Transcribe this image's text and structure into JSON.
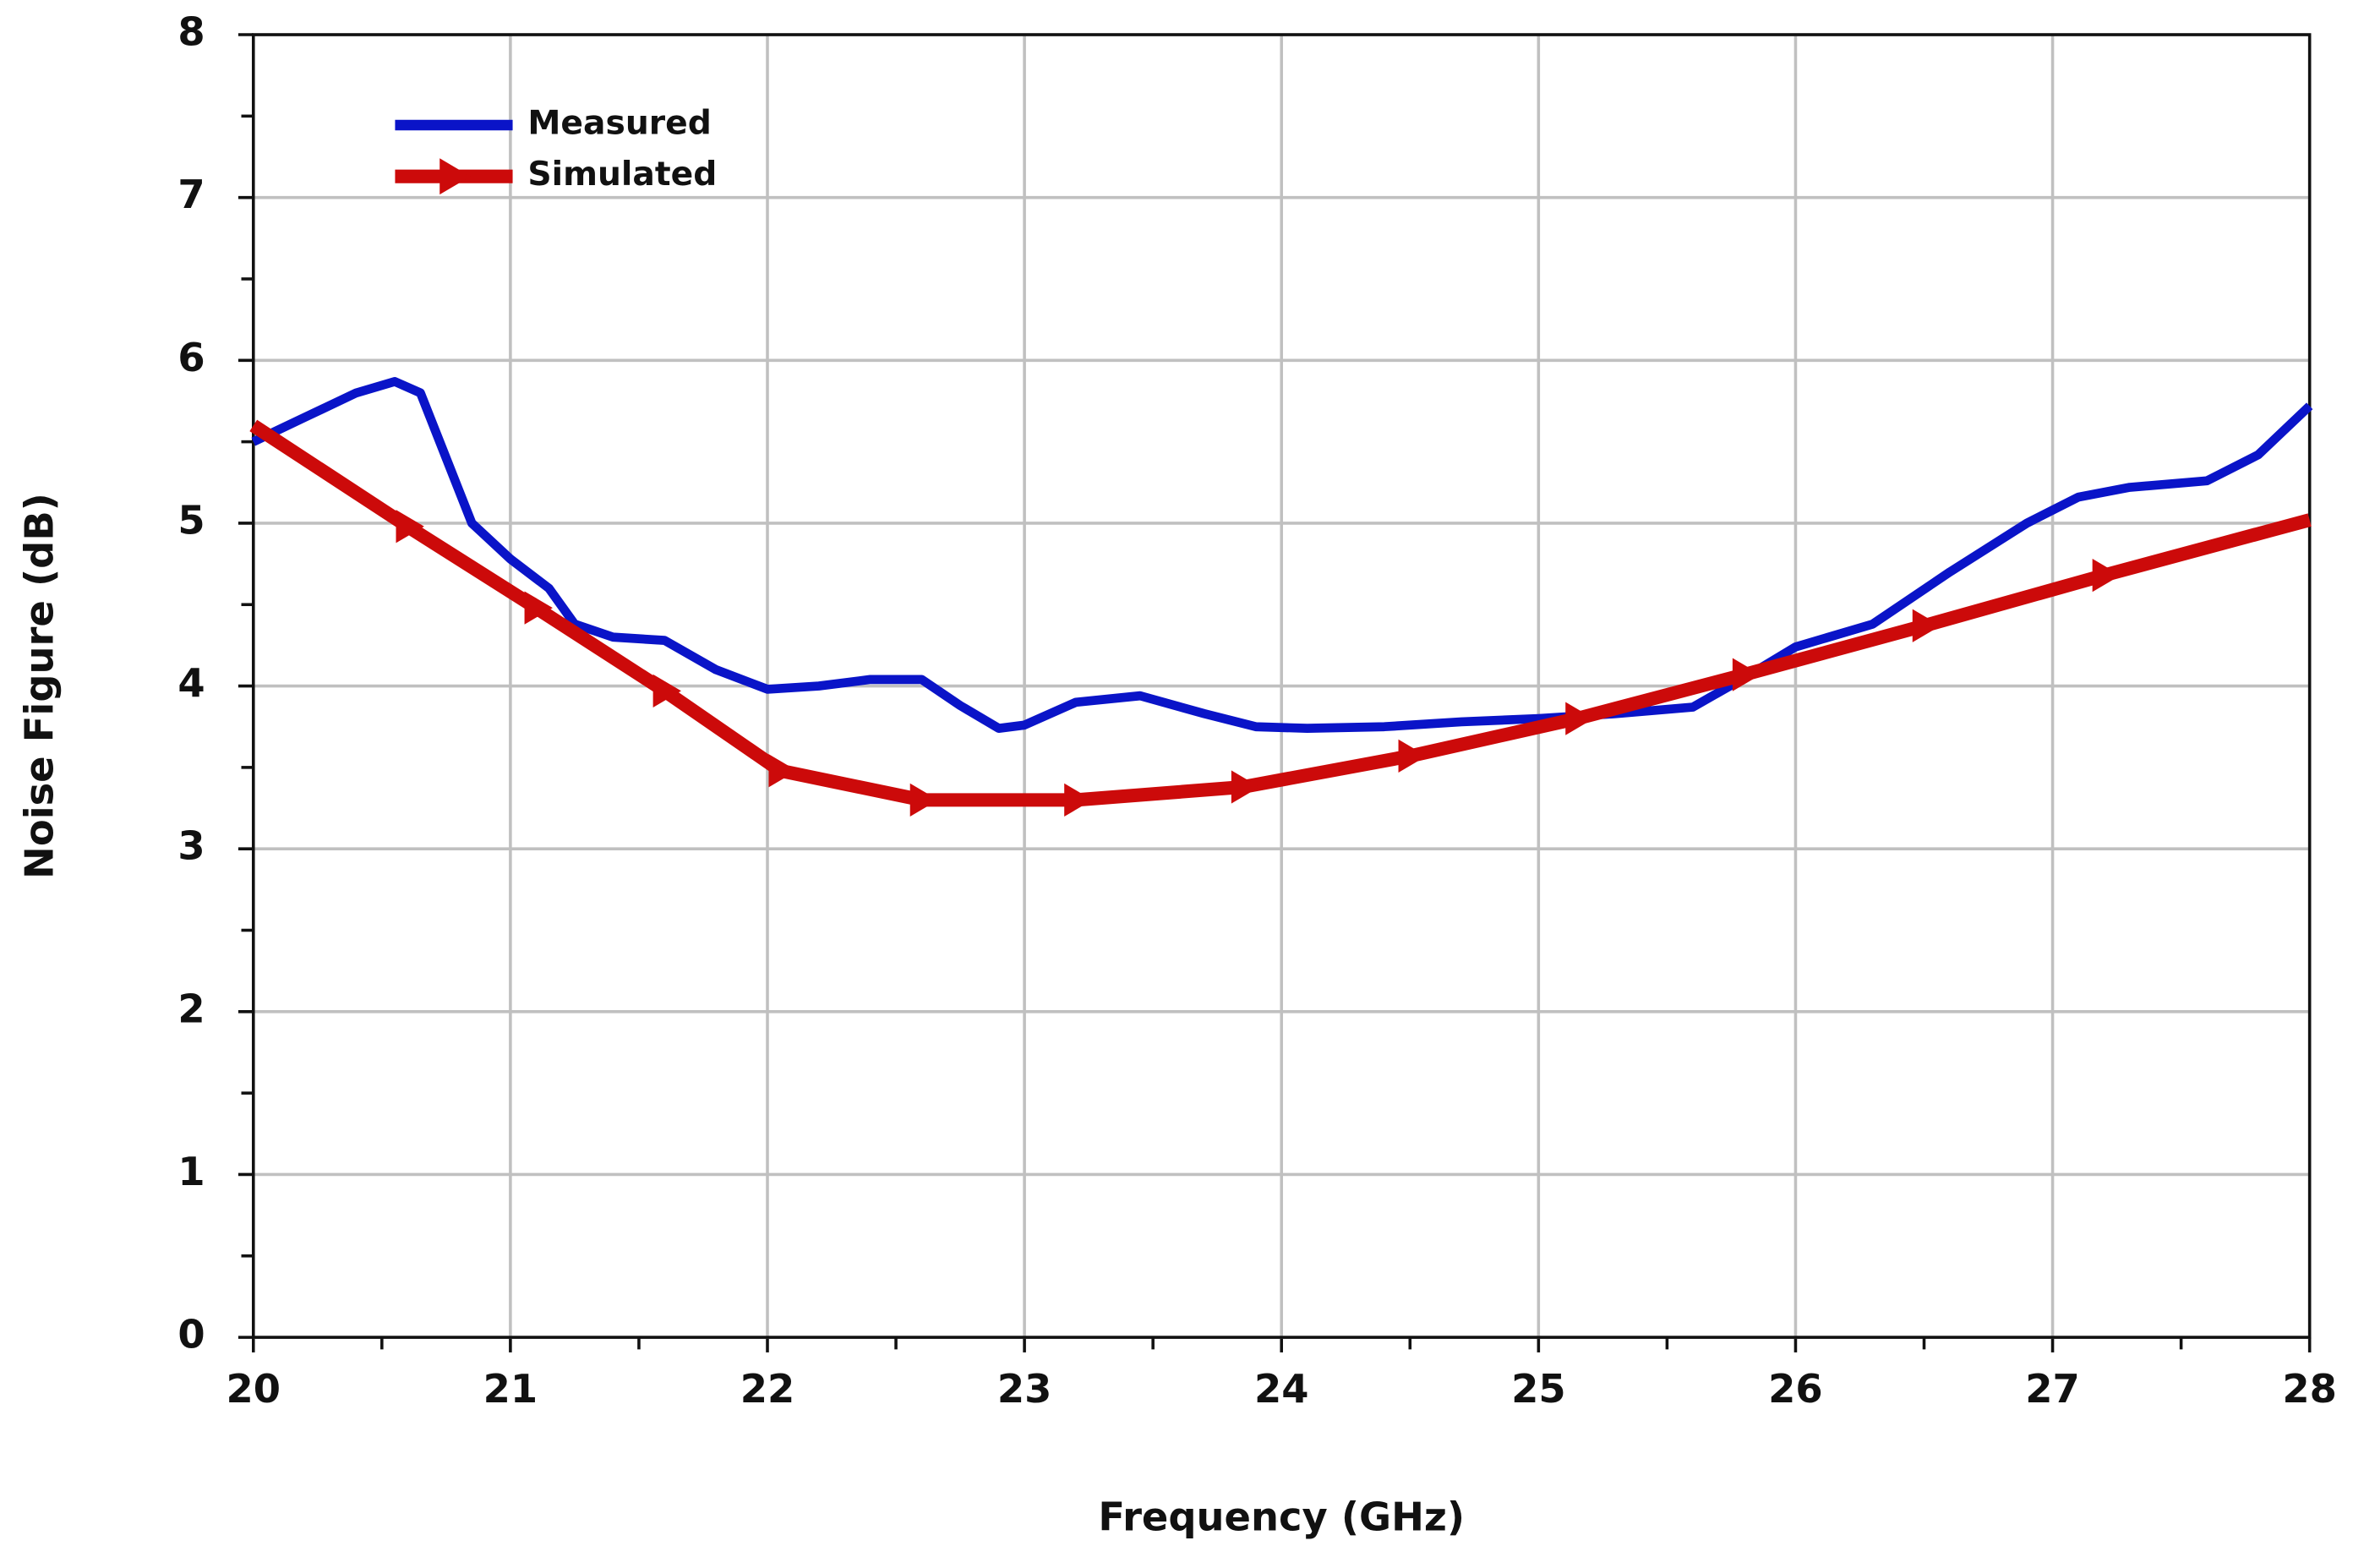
{
  "chart_data": {
    "type": "line",
    "x_label": "Frequency (GHz)",
    "y_label": "Noise Figure (dB)",
    "xlim": [
      20,
      28
    ],
    "xticks": [
      20,
      21,
      22,
      23,
      24,
      25,
      26,
      27,
      28
    ],
    "ylim": [
      0,
      8
    ],
    "yticks": [
      0,
      1,
      2,
      3,
      4,
      5,
      6,
      7,
      8
    ],
    "grid": true,
    "legend": "upper left",
    "series": [
      {
        "name": "Measured",
        "color": "#0a14c8",
        "marker": "none",
        "x": [
          20.0,
          20.2,
          20.4,
          20.55,
          20.65,
          20.75,
          20.85,
          21.0,
          21.15,
          21.25,
          21.4,
          21.6,
          21.8,
          22.0,
          22.2,
          22.4,
          22.6,
          22.75,
          22.9,
          23.0,
          23.2,
          23.45,
          23.7,
          23.9,
          24.1,
          24.4,
          24.7,
          25.0,
          25.3,
          25.6,
          25.8,
          26.0,
          26.3,
          26.6,
          26.9,
          27.1,
          27.3,
          27.6,
          27.8,
          28.0
        ],
        "values": [
          5.5,
          5.65,
          5.8,
          5.87,
          5.8,
          5.4,
          5.0,
          4.78,
          4.6,
          4.38,
          4.3,
          4.28,
          4.1,
          3.98,
          4.0,
          4.04,
          4.04,
          3.88,
          3.74,
          3.76,
          3.9,
          3.94,
          3.83,
          3.75,
          3.74,
          3.75,
          3.78,
          3.8,
          3.83,
          3.87,
          4.05,
          4.24,
          4.38,
          4.7,
          5.0,
          5.16,
          5.22,
          5.26,
          5.42,
          5.72
        ]
      },
      {
        "name": "Simulated",
        "color": "#cc0a0a",
        "marker": "triangle",
        "x": [
          20.0,
          20.6,
          21.1,
          21.6,
          22.05,
          22.6,
          23.2,
          23.85,
          24.5,
          25.15,
          25.8,
          26.5,
          27.2,
          28.0
        ],
        "values": [
          5.6,
          4.98,
          4.48,
          3.97,
          3.48,
          3.3,
          3.3,
          3.38,
          3.57,
          3.8,
          4.07,
          4.37,
          4.68,
          5.02
        ]
      }
    ]
  }
}
